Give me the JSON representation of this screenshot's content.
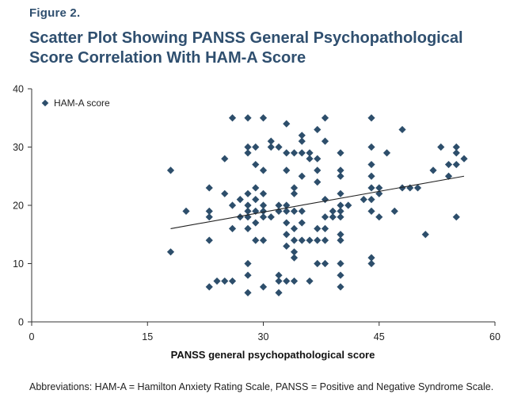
{
  "figure": {
    "label": "Figure 2.",
    "title": "Scatter Plot Showing PANSS General Psychopathological Score Correlation With HAM-A Score",
    "footnote": "Abbreviations: HAM-A = Hamilton Anxiety Rating Scale, PANSS = Positive and Negative Syndrome Scale."
  },
  "chart_data": {
    "type": "scatter",
    "xlabel": "PANSS general psychopathological score",
    "ylabel": "",
    "xlim": [
      0,
      60
    ],
    "ylim": [
      0,
      40
    ],
    "xticks": [
      0,
      15,
      30,
      45,
      60
    ],
    "yticks": [
      0,
      10,
      20,
      30,
      40
    ],
    "grid": false,
    "legend": "top-left",
    "marker_color": "#2d4e6b",
    "series": [
      {
        "name": "HAM-A score",
        "points": [
          [
            18,
            26
          ],
          [
            18,
            12
          ],
          [
            20,
            19
          ],
          [
            23,
            23
          ],
          [
            23,
            19
          ],
          [
            23,
            18
          ],
          [
            23,
            14
          ],
          [
            23,
            6
          ],
          [
            24,
            7
          ],
          [
            25,
            7
          ],
          [
            26,
            7
          ],
          [
            25,
            28
          ],
          [
            25,
            22
          ],
          [
            26,
            35
          ],
          [
            26,
            20
          ],
          [
            26,
            16
          ],
          [
            27,
            18
          ],
          [
            27,
            21
          ],
          [
            28,
            35
          ],
          [
            28,
            30
          ],
          [
            28,
            29
          ],
          [
            28,
            22
          ],
          [
            28,
            20
          ],
          [
            28,
            19
          ],
          [
            28,
            18
          ],
          [
            28,
            16
          ],
          [
            28,
            10
          ],
          [
            28,
            8
          ],
          [
            28,
            5
          ],
          [
            29,
            30
          ],
          [
            29,
            27
          ],
          [
            29,
            23
          ],
          [
            29,
            21
          ],
          [
            29,
            19
          ],
          [
            29,
            17
          ],
          [
            29,
            14
          ],
          [
            30,
            35
          ],
          [
            30,
            26
          ],
          [
            30,
            22
          ],
          [
            30,
            20
          ],
          [
            30,
            19
          ],
          [
            30,
            18
          ],
          [
            30,
            14
          ],
          [
            30,
            6
          ],
          [
            31,
            31
          ],
          [
            31,
            30
          ],
          [
            31,
            18
          ],
          [
            32,
            30
          ],
          [
            32,
            20
          ],
          [
            32,
            19
          ],
          [
            32,
            8
          ],
          [
            32,
            7
          ],
          [
            32,
            5
          ],
          [
            33,
            34
          ],
          [
            33,
            29
          ],
          [
            33,
            26
          ],
          [
            33,
            20
          ],
          [
            33,
            19
          ],
          [
            33,
            17
          ],
          [
            33,
            15
          ],
          [
            33,
            13
          ],
          [
            33,
            7
          ],
          [
            34,
            29
          ],
          [
            34,
            23
          ],
          [
            34,
            22
          ],
          [
            34,
            19
          ],
          [
            34,
            16
          ],
          [
            34,
            14
          ],
          [
            34,
            12
          ],
          [
            34,
            11
          ],
          [
            34,
            7
          ],
          [
            35,
            32
          ],
          [
            35,
            31
          ],
          [
            35,
            29
          ],
          [
            35,
            25
          ],
          [
            35,
            19
          ],
          [
            35,
            17
          ],
          [
            35,
            14
          ],
          [
            36,
            29
          ],
          [
            36,
            28
          ],
          [
            36,
            14
          ],
          [
            36,
            7
          ],
          [
            37,
            33
          ],
          [
            37,
            28
          ],
          [
            37,
            26
          ],
          [
            37,
            24
          ],
          [
            37,
            16
          ],
          [
            37,
            14
          ],
          [
            37,
            10
          ],
          [
            38,
            35
          ],
          [
            38,
            31
          ],
          [
            38,
            21
          ],
          [
            38,
            18
          ],
          [
            38,
            16
          ],
          [
            38,
            14
          ],
          [
            38,
            10
          ],
          [
            39,
            19
          ],
          [
            39,
            18
          ],
          [
            40,
            29
          ],
          [
            40,
            26
          ],
          [
            40,
            25
          ],
          [
            40,
            22
          ],
          [
            40,
            20
          ],
          [
            40,
            19
          ],
          [
            40,
            18
          ],
          [
            40,
            15
          ],
          [
            40,
            14
          ],
          [
            40,
            10
          ],
          [
            40,
            8
          ],
          [
            40,
            6
          ],
          [
            41,
            20
          ],
          [
            43,
            21
          ],
          [
            44,
            35
          ],
          [
            44,
            30
          ],
          [
            44,
            27
          ],
          [
            44,
            25
          ],
          [
            44,
            23
          ],
          [
            44,
            21
          ],
          [
            44,
            19
          ],
          [
            44,
            11
          ],
          [
            44,
            10
          ],
          [
            45,
            23
          ],
          [
            45,
            22
          ],
          [
            45,
            18
          ],
          [
            46,
            29
          ],
          [
            47,
            19
          ],
          [
            48,
            33
          ],
          [
            48,
            23
          ],
          [
            49,
            23
          ],
          [
            50,
            23
          ],
          [
            51,
            15
          ],
          [
            52,
            26
          ],
          [
            53,
            30
          ],
          [
            54,
            27
          ],
          [
            54,
            25
          ],
          [
            55,
            30
          ],
          [
            55,
            29
          ],
          [
            55,
            27
          ],
          [
            55,
            18
          ],
          [
            56,
            28
          ]
        ]
      }
    ],
    "trendline": {
      "x": [
        18,
        56
      ],
      "y": [
        16,
        25
      ]
    }
  }
}
